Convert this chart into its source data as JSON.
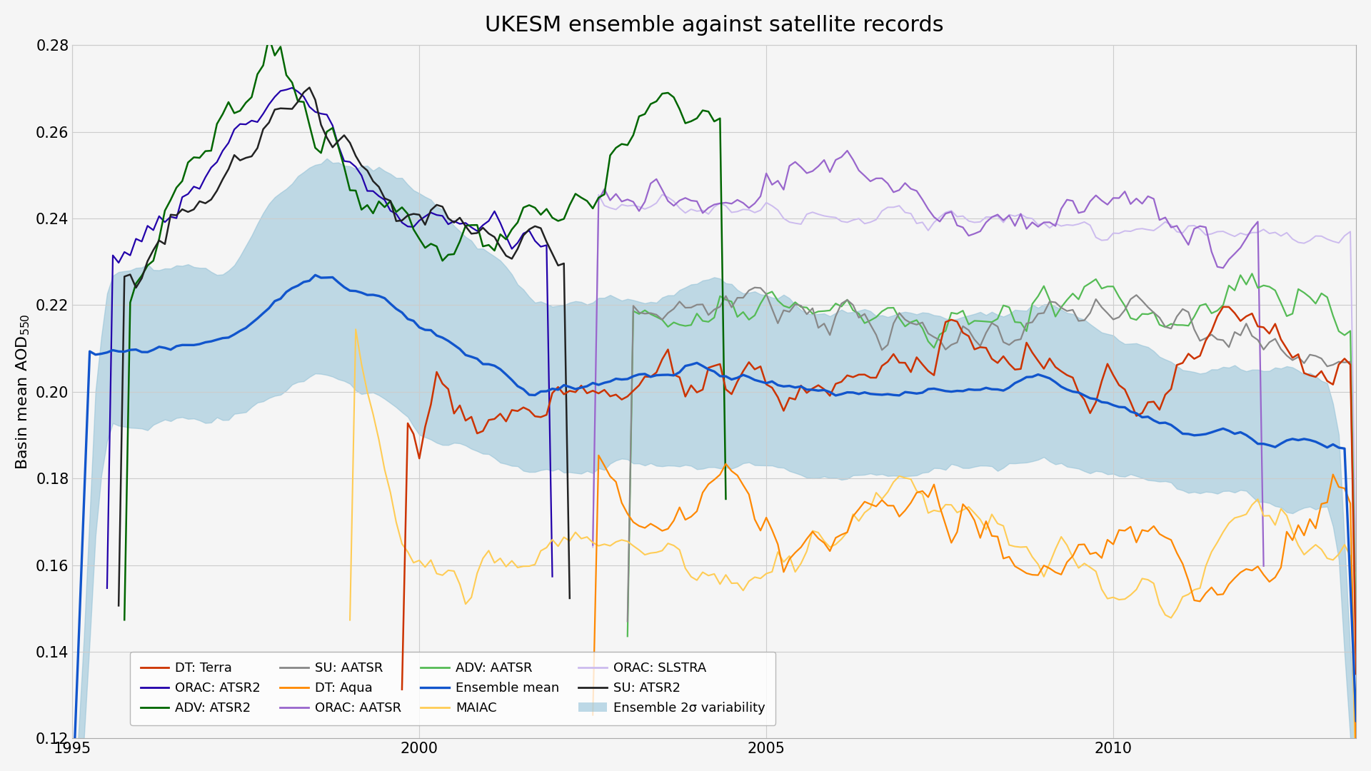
{
  "title": "UKESM ensemble against satellite records",
  "ylabel": "Basin mean AOD₅₅₀",
  "ylim": [
    0.12,
    0.28
  ],
  "yticks": [
    0.12,
    0.14,
    0.16,
    0.18,
    0.2,
    0.22,
    0.24,
    0.26,
    0.28
  ],
  "xlim_start": 1995.0,
  "xlim_end": 2013.5,
  "xticks": [
    1995,
    2000,
    2005,
    2010
  ],
  "title_fontsize": 22,
  "label_fontsize": 16,
  "tick_fontsize": 15,
  "legend_fontsize": 13,
  "colors": {
    "DT_Terra": "#cc3300",
    "DT_Aqua": "#ff8800",
    "MAIAC": "#ffcc55",
    "ORAC_ATSR2": "#2200aa",
    "ORAC_AATSR": "#9966cc",
    "ORAC_SLSTRA": "#ccbbee",
    "ADV_ATSR2": "#006600",
    "ADV_AATSR": "#55bb55",
    "SU_ATSR2": "#222222",
    "SU_AATSR": "#888888",
    "ensemble_mean": "#1155cc",
    "ensemble_fill": "#89bcd4"
  },
  "background_color": "#f5f5f5",
  "grid_color": "#cccccc"
}
